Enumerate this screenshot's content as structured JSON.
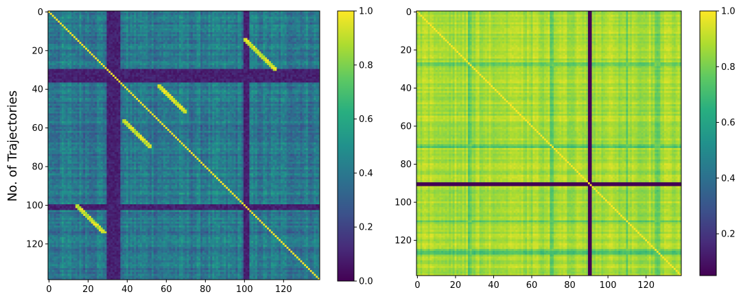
{
  "chart_data": [
    {
      "type": "heatmap",
      "ylabel": "No. of Trajectories",
      "xlabel": "",
      "n": 139,
      "xlim": [
        0,
        139
      ],
      "ylim": [
        139,
        0
      ],
      "x_ticks": [
        0,
        20,
        40,
        60,
        80,
        100,
        120
      ],
      "y_ticks": [
        0,
        20,
        40,
        60,
        80,
        100,
        120
      ],
      "colormap": "viridis",
      "colorbar": {
        "min": 0.0,
        "max": 1.0,
        "ticks": [
          "0.0",
          "0.2",
          "0.4",
          "0.6",
          "0.8",
          "1.0"
        ]
      },
      "matrix_summary": {
        "diagonal_value": 1.0,
        "background_range": [
          0.2,
          0.6
        ],
        "low_rows_cols": [
          [
            30,
            36
          ],
          [
            100,
            102
          ]
        ],
        "low_value": 0.05,
        "off_diagonal_similar_bands": [
          {
            "rows": [
              14,
              30
            ],
            "cols": [
              100,
              116
            ]
          },
          {
            "rows": [
              100,
              114
            ],
            "cols": [
              14,
              30
            ]
          },
          {
            "rows": [
              38,
              52
            ],
            "cols": [
              56,
              70
            ]
          },
          {
            "rows": [
              56,
              70
            ],
            "cols": [
              38,
              52
            ]
          }
        ]
      }
    },
    {
      "type": "heatmap",
      "n": 139,
      "xlim": [
        0,
        139
      ],
      "ylim": [
        139,
        0
      ],
      "x_ticks": [
        0,
        20,
        40,
        60,
        80,
        100,
        120
      ],
      "y_ticks": [
        0,
        20,
        40,
        60,
        80,
        100,
        120
      ],
      "colormap": "viridis",
      "colorbar": {
        "min": 0.05,
        "max": 1.0,
        "ticks": [
          "0.2",
          "0.4",
          "0.6",
          "0.8",
          "1.0"
        ]
      },
      "matrix_summary": {
        "diagonal_value": 1.0,
        "background_range": [
          0.78,
          0.97
        ],
        "low_rows_cols": [
          [
            90,
            91
          ]
        ],
        "low_value": 0.05,
        "lighter_rows_cols": [
          27,
          28,
          70,
          71,
          110,
          125,
          126,
          127
        ]
      }
    }
  ]
}
